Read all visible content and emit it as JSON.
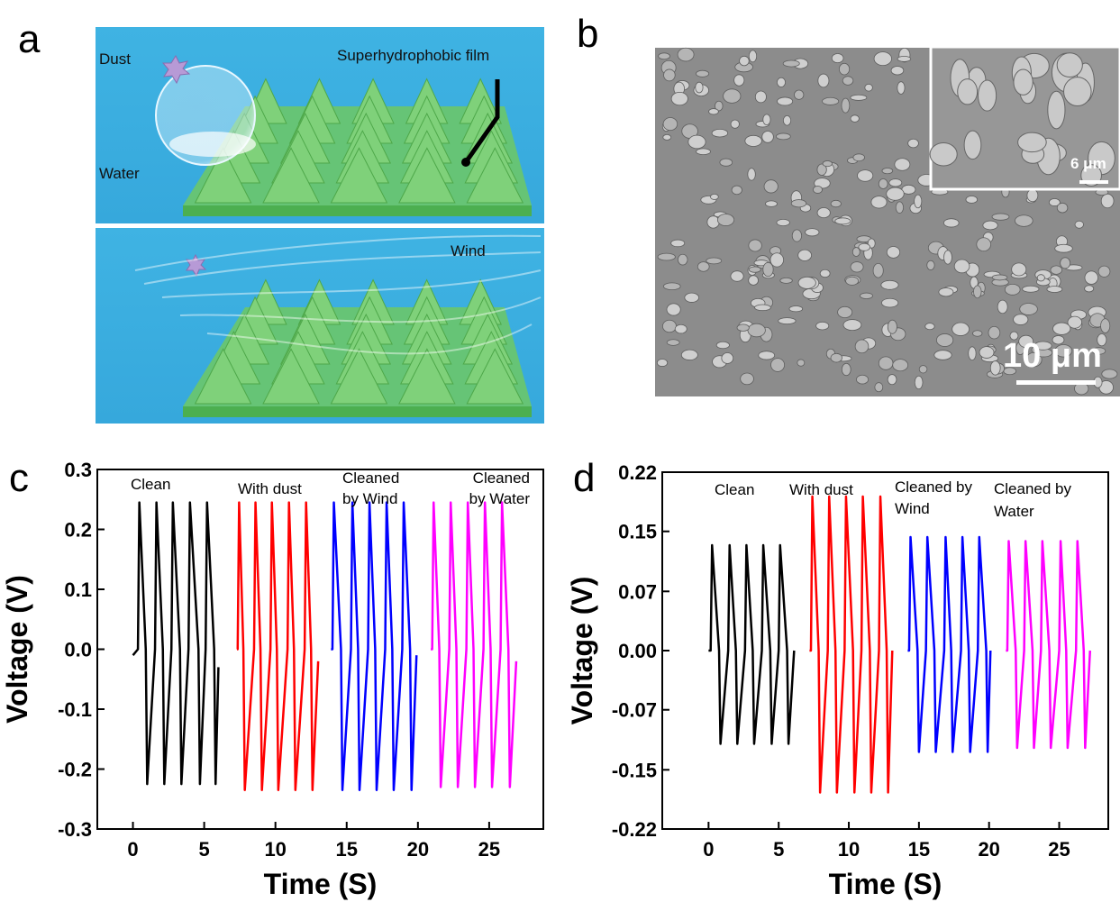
{
  "figure": {
    "panel_labels": [
      "a",
      "b"
    ],
    "illustration": {
      "dust": "Dust",
      "water": "Water",
      "film": "Superhydrophobic film",
      "wind": "Wind"
    },
    "sem": {
      "inset_scale": "6 μm",
      "scale": "10 μm"
    }
  },
  "chart_data": [
    {
      "type": "line",
      "panel_label": "c",
      "xlabel": "Time (S)",
      "ylabel": "Voltage (V)",
      "xlim": [
        -2.5,
        28.8
      ],
      "ylim": [
        -0.3,
        0.3
      ],
      "xticks": [
        0,
        5,
        10,
        15,
        20,
        25
      ],
      "yticks": [
        -0.3,
        -0.2,
        -0.1,
        {
          "value": 0,
          "label": "0.0"
        },
        0.1,
        0.2,
        0.3
      ],
      "annotations": [
        [
          "Clean"
        ],
        [
          "With dust"
        ],
        [
          "Cleaned",
          "by Wind"
        ],
        [
          "Cleaned",
          "by   Water"
        ]
      ],
      "series": [
        {
          "color": "#000000",
          "x": [
            0,
            0.35,
            0.45,
            0.9,
            1.0,
            1.55,
            1.65,
            2.1,
            2.2,
            2.7,
            2.8,
            3.3,
            3.4,
            3.9,
            4.0,
            4.6,
            4.7,
            5.1,
            5.2,
            5.7,
            5.8,
            6.0
          ],
          "values": [
            -0.01,
            0,
            0.245,
            0,
            -0.225,
            0,
            0.245,
            0,
            -0.225,
            0,
            0.245,
            0,
            -0.225,
            0,
            0.245,
            0,
            -0.225,
            0,
            0.245,
            0,
            -0.225,
            -0.03
          ]
        },
        {
          "color": "#ff0000",
          "x": [
            7.3,
            7.35,
            7.45,
            7.75,
            7.85,
            8.5,
            8.6,
            8.95,
            9.05,
            9.65,
            9.75,
            10.1,
            10.2,
            10.85,
            10.95,
            11.3,
            11.4,
            12.05,
            12.15,
            12.5,
            12.6,
            13.0
          ],
          "values": [
            0,
            0,
            0.245,
            0,
            -0.235,
            0,
            0.245,
            0,
            -0.235,
            0,
            0.245,
            0,
            -0.235,
            0,
            0.245,
            0,
            -0.235,
            0,
            0.245,
            0,
            -0.235,
            -0.02
          ]
        },
        {
          "color": "#0000ff",
          "x": [
            13.9,
            14.0,
            14.1,
            14.6,
            14.7,
            15.3,
            15.4,
            15.8,
            15.9,
            16.5,
            16.6,
            17.0,
            17.1,
            17.7,
            17.8,
            18.2,
            18.3,
            18.9,
            19.0,
            19.45,
            19.55,
            19.9
          ],
          "values": [
            0,
            0,
            0.245,
            0,
            -0.235,
            0,
            0.245,
            0,
            -0.235,
            0,
            0.245,
            0,
            -0.235,
            0,
            0.245,
            0,
            -0.235,
            0,
            0.245,
            0,
            -0.235,
            -0.01
          ]
        },
        {
          "color": "#ff00ff",
          "x": [
            20.9,
            21.0,
            21.1,
            21.5,
            21.6,
            22.2,
            22.3,
            22.7,
            22.8,
            23.4,
            23.5,
            23.9,
            24.0,
            24.6,
            24.7,
            25.1,
            25.2,
            25.8,
            25.9,
            26.35,
            26.45,
            26.9
          ],
          "values": [
            0,
            0,
            0.245,
            0,
            -0.23,
            0,
            0.245,
            0,
            -0.23,
            0,
            0.245,
            0,
            -0.23,
            0,
            0.245,
            0,
            -0.23,
            0,
            0.245,
            0,
            -0.23,
            -0.02
          ]
        }
      ]
    },
    {
      "type": "line",
      "panel_label": "d",
      "xlabel": "Time (S)",
      "ylabel": "Voltage (V)",
      "xlim": [
        -3.3,
        28.5
      ],
      "ylim": [
        -0.22,
        0.22
      ],
      "xticks": [
        0,
        5,
        10,
        15,
        20,
        25
      ],
      "yticks": [
        -0.22,
        {
          "value": -0.147,
          "label": "-0.15"
        },
        {
          "value": -0.073,
          "label": "-0.07"
        },
        {
          "value": 0,
          "label": "0.00"
        },
        {
          "value": 0.073,
          "label": "0.07"
        },
        {
          "value": 0.147,
          "label": "0.15"
        },
        0.22
      ],
      "annotations": [
        [
          "Clean"
        ],
        [
          "With dust"
        ],
        [
          "Cleaned by",
          "Wind"
        ],
        [
          "Cleaned      by",
          "Water"
        ]
      ],
      "series": [
        {
          "color": "#000000",
          "x": [
            0,
            0.15,
            0.25,
            0.75,
            0.85,
            1.4,
            1.5,
            1.95,
            2.05,
            2.6,
            2.7,
            3.15,
            3.25,
            3.8,
            3.9,
            4.4,
            4.5,
            5.0,
            5.1,
            5.6,
            5.7,
            6.1
          ],
          "values": [
            0,
            0,
            0.13,
            0,
            -0.115,
            0,
            0.13,
            0,
            -0.115,
            0,
            0.13,
            0,
            -0.115,
            0,
            0.13,
            0,
            -0.115,
            0,
            0.13,
            0,
            -0.115,
            0
          ]
        },
        {
          "color": "#ff0000",
          "x": [
            7.2,
            7.3,
            7.4,
            7.85,
            7.95,
            8.5,
            8.6,
            9.05,
            9.15,
            9.7,
            9.8,
            10.3,
            10.4,
            10.9,
            11.0,
            11.5,
            11.6,
            12.15,
            12.25,
            12.7,
            12.8,
            13.1
          ],
          "values": [
            0,
            0,
            0.19,
            0,
            -0.175,
            0,
            0.19,
            0,
            -0.175,
            0,
            0.19,
            0,
            -0.175,
            0,
            0.19,
            0,
            -0.175,
            0,
            0.19,
            0,
            -0.175,
            0
          ]
        },
        {
          "color": "#0000ff",
          "x": [
            14.2,
            14.3,
            14.4,
            14.9,
            15.0,
            15.5,
            15.6,
            16.1,
            16.2,
            16.8,
            16.9,
            17.3,
            17.4,
            18.0,
            18.1,
            18.55,
            18.65,
            19.2,
            19.3,
            19.8,
            19.9,
            20.1
          ],
          "values": [
            0,
            0,
            0.14,
            0,
            -0.125,
            0,
            0.14,
            0,
            -0.125,
            0,
            0.14,
            0,
            -0.125,
            0,
            0.14,
            0,
            -0.125,
            0,
            0.14,
            0,
            -0.125,
            0
          ]
        },
        {
          "color": "#ff00ff",
          "x": [
            21.2,
            21.3,
            21.4,
            21.9,
            22.0,
            22.5,
            22.6,
            23.1,
            23.2,
            23.7,
            23.8,
            24.3,
            24.4,
            25.0,
            25.1,
            25.5,
            25.6,
            26.2,
            26.3,
            26.75,
            26.85,
            27.2
          ],
          "values": [
            0,
            0,
            0.135,
            0,
            -0.12,
            0,
            0.135,
            0,
            -0.12,
            0,
            0.135,
            0,
            -0.12,
            0,
            0.135,
            0,
            -0.12,
            0,
            0.135,
            0,
            -0.12,
            0
          ]
        }
      ]
    }
  ]
}
